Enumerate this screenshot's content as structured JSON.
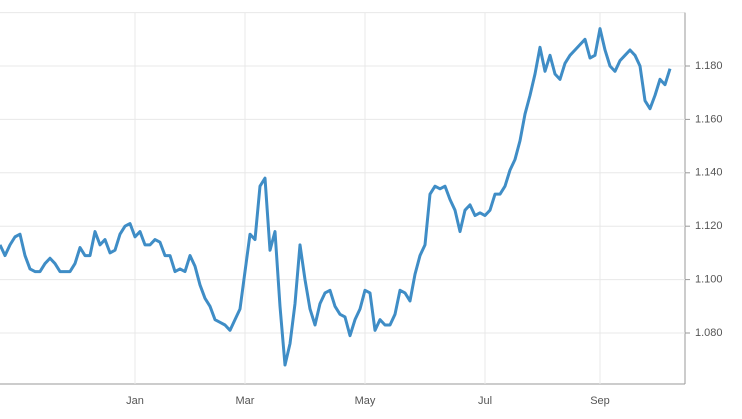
{
  "chart_data": {
    "type": "line",
    "color": "#3f8dc6",
    "grid": true,
    "categories": [
      null,
      null,
      null,
      null,
      null,
      null,
      null,
      null,
      null,
      null,
      null,
      null,
      null,
      null,
      null,
      null,
      null,
      null,
      null,
      null,
      null,
      null,
      null,
      null,
      null,
      null,
      null,
      "Jan",
      null,
      null,
      null,
      null,
      null,
      null,
      null,
      null,
      null,
      null,
      null,
      null,
      null,
      null,
      null,
      null,
      null,
      null,
      null,
      null,
      null,
      "Mar",
      null,
      null,
      null,
      null,
      null,
      null,
      null,
      null,
      null,
      null,
      null,
      null,
      null,
      null,
      null,
      null,
      null,
      null,
      null,
      null,
      null,
      null,
      null,
      "May",
      null,
      null,
      null,
      null,
      null,
      null,
      null,
      null,
      null,
      null,
      null,
      null,
      null,
      null,
      null,
      null,
      null,
      null,
      null,
      null,
      null,
      null,
      null,
      "Jul",
      null,
      null,
      null,
      null,
      null,
      null,
      null,
      null,
      null,
      null,
      null,
      null,
      null,
      null,
      null,
      null,
      null,
      null,
      null,
      null,
      null,
      null,
      "Sep",
      null,
      null,
      null,
      null,
      null,
      null,
      null,
      null,
      null,
      null,
      null,
      null,
      null,
      null
    ],
    "values": [
      1.113,
      1.109,
      1.113,
      1.116,
      1.117,
      1.109,
      1.104,
      1.103,
      1.103,
      1.106,
      1.108,
      1.106,
      1.103,
      1.103,
      1.103,
      1.106,
      1.112,
      1.109,
      1.109,
      1.118,
      1.113,
      1.115,
      1.11,
      1.111,
      1.117,
      1.12,
      1.121,
      1.116,
      1.118,
      1.113,
      1.113,
      1.115,
      1.114,
      1.109,
      1.109,
      1.103,
      1.104,
      1.103,
      1.109,
      1.105,
      1.098,
      1.093,
      1.09,
      1.085,
      1.084,
      1.083,
      1.081,
      1.085,
      1.089,
      1.103,
      1.117,
      1.115,
      1.135,
      1.138,
      1.111,
      1.118,
      1.09,
      1.068,
      1.076,
      1.091,
      1.113,
      1.1,
      1.089,
      1.083,
      1.091,
      1.095,
      1.096,
      1.09,
      1.087,
      1.086,
      1.079,
      1.085,
      1.089,
      1.096,
      1.095,
      1.081,
      1.085,
      1.083,
      1.083,
      1.087,
      1.096,
      1.095,
      1.092,
      1.102,
      1.109,
      1.113,
      1.132,
      1.135,
      1.134,
      1.135,
      1.13,
      1.126,
      1.118,
      1.126,
      1.128,
      1.124,
      1.125,
      1.124,
      1.126,
      1.132,
      1.132,
      1.135,
      1.141,
      1.145,
      1.152,
      1.162,
      1.169,
      1.177,
      1.187,
      1.178,
      1.184,
      1.177,
      1.175,
      1.181,
      1.184,
      1.186,
      1.188,
      1.19,
      1.183,
      1.184,
      1.194,
      1.186,
      1.18,
      1.178,
      1.182,
      1.184,
      1.186,
      1.184,
      1.18,
      1.167,
      1.164,
      1.169,
      1.175,
      1.173,
      1.179
    ],
    "ylim": [
      1.06,
      1.2
    ],
    "yticks": [
      {
        "value": 1.08,
        "label": "1.080"
      },
      {
        "value": 1.1,
        "label": "1.100"
      },
      {
        "value": 1.12,
        "label": "1.120"
      },
      {
        "value": 1.14,
        "label": "1.140"
      },
      {
        "value": 1.16,
        "label": "1.160"
      },
      {
        "value": 1.18,
        "label": "1.180"
      }
    ]
  }
}
